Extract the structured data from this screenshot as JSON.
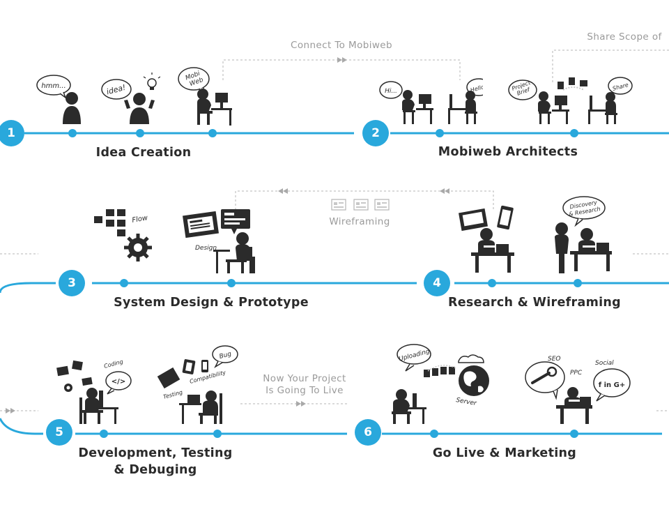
{
  "stages": [
    {
      "number": "1",
      "title": "Idea Creation"
    },
    {
      "number": "2",
      "title": "Mobiweb Architects"
    },
    {
      "number": "3",
      "title": "System Design & Prototype"
    },
    {
      "number": "4",
      "title": "Research & Wireframing"
    },
    {
      "number": "5",
      "title_line1": "Development, Testing",
      "title_line2": "& Debuging"
    },
    {
      "number": "6",
      "title": "Go Live & Marketing"
    }
  ],
  "connectors": {
    "connect_to_mobiweb": "Connect To Mobiweb",
    "share_scope": "Share Scope of",
    "wireframing": "Wireframing",
    "go_live_line1": "Now Your Project",
    "go_live_line2": "Is Going To Live"
  },
  "bubbles": {
    "hmm": "hmm...",
    "idea": "idea!",
    "mobi": "Mobi",
    "web": "Web",
    "hi": "Hi...",
    "hello": "Hello..",
    "project": "Project",
    "brief": "Brief",
    "share": "Share",
    "flow": "Flow",
    "design": "Design",
    "discovery": "Discovery",
    "and_research": "& Research",
    "coding": "Coding",
    "code_tag": "</>",
    "bug": "Bug",
    "testing": "Testing",
    "compatibility": "Compatibility",
    "uploading": "Uploading",
    "server": "Server",
    "seo": "SEO",
    "ppc": "PPC",
    "social": "Social",
    "social_glyphs": "f  in  G+"
  },
  "colors": {
    "accent": "#29a8dc",
    "figure": "#2b2b2b",
    "connector": "#9a9a9a"
  }
}
